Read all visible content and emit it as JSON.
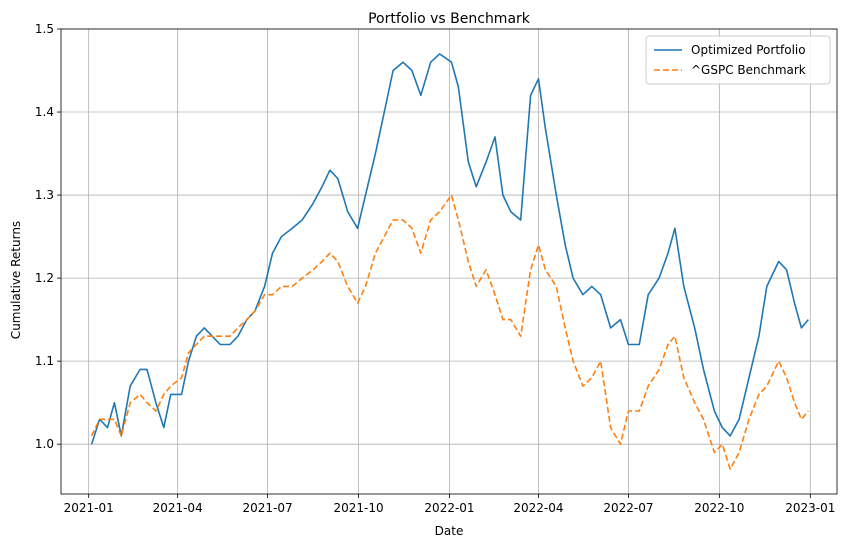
{
  "chart_data": {
    "type": "line",
    "title": "Portfolio vs Benchmark",
    "xlabel": "Date",
    "ylabel": "Cumulative Returns",
    "x_ticks": [
      "2021-01",
      "2021-04",
      "2021-07",
      "2021-10",
      "2022-01",
      "2022-04",
      "2022-07",
      "2022-10",
      "2023-01"
    ],
    "y_ticks": [
      "1.0",
      "1.1",
      "1.2",
      "1.3",
      "1.4",
      "1.5"
    ],
    "xlim": [
      "2020-12-04",
      "2023-01-28"
    ],
    "ylim": [
      0.94,
      1.5
    ],
    "grid": true,
    "legend_position": "top-right",
    "series": [
      {
        "name": "Optimized Portfolio",
        "color": "#1f77b4",
        "style": "solid",
        "points": [
          [
            "2021-01-04",
            1.0
          ],
          [
            "2021-01-12",
            1.03
          ],
          [
            "2021-01-20",
            1.02
          ],
          [
            "2021-01-27",
            1.05
          ],
          [
            "2021-02-03",
            1.01
          ],
          [
            "2021-02-12",
            1.07
          ],
          [
            "2021-02-22",
            1.09
          ],
          [
            "2021-03-01",
            1.09
          ],
          [
            "2021-03-10",
            1.05
          ],
          [
            "2021-03-18",
            1.02
          ],
          [
            "2021-03-25",
            1.06
          ],
          [
            "2021-04-05",
            1.06
          ],
          [
            "2021-04-12",
            1.1
          ],
          [
            "2021-04-20",
            1.13
          ],
          [
            "2021-04-28",
            1.14
          ],
          [
            "2021-05-06",
            1.13
          ],
          [
            "2021-05-14",
            1.12
          ],
          [
            "2021-05-24",
            1.12
          ],
          [
            "2021-06-01",
            1.13
          ],
          [
            "2021-06-10",
            1.15
          ],
          [
            "2021-06-18",
            1.16
          ],
          [
            "2021-06-28",
            1.19
          ],
          [
            "2021-07-06",
            1.23
          ],
          [
            "2021-07-15",
            1.25
          ],
          [
            "2021-07-26",
            1.26
          ],
          [
            "2021-08-05",
            1.27
          ],
          [
            "2021-08-16",
            1.29
          ],
          [
            "2021-08-25",
            1.31
          ],
          [
            "2021-09-02",
            1.33
          ],
          [
            "2021-09-10",
            1.32
          ],
          [
            "2021-09-20",
            1.28
          ],
          [
            "2021-09-30",
            1.26
          ],
          [
            "2021-10-08",
            1.3
          ],
          [
            "2021-10-18",
            1.35
          ],
          [
            "2021-10-27",
            1.4
          ],
          [
            "2021-11-05",
            1.45
          ],
          [
            "2021-11-15",
            1.46
          ],
          [
            "2021-11-24",
            1.45
          ],
          [
            "2021-12-03",
            1.42
          ],
          [
            "2021-12-13",
            1.46
          ],
          [
            "2021-12-22",
            1.47
          ],
          [
            "2022-01-03",
            1.46
          ],
          [
            "2022-01-10",
            1.43
          ],
          [
            "2022-01-20",
            1.34
          ],
          [
            "2022-01-28",
            1.31
          ],
          [
            "2022-02-07",
            1.34
          ],
          [
            "2022-02-16",
            1.37
          ],
          [
            "2022-02-24",
            1.3
          ],
          [
            "2022-03-04",
            1.28
          ],
          [
            "2022-03-14",
            1.27
          ],
          [
            "2022-03-24",
            1.42
          ],
          [
            "2022-04-01",
            1.44
          ],
          [
            "2022-04-08",
            1.38
          ],
          [
            "2022-04-19",
            1.3
          ],
          [
            "2022-04-28",
            1.24
          ],
          [
            "2022-05-06",
            1.2
          ],
          [
            "2022-05-16",
            1.18
          ],
          [
            "2022-05-25",
            1.19
          ],
          [
            "2022-06-03",
            1.18
          ],
          [
            "2022-06-13",
            1.14
          ],
          [
            "2022-06-23",
            1.15
          ],
          [
            "2022-07-01",
            1.12
          ],
          [
            "2022-07-12",
            1.12
          ],
          [
            "2022-07-21",
            1.18
          ],
          [
            "2022-08-01",
            1.2
          ],
          [
            "2022-08-10",
            1.23
          ],
          [
            "2022-08-17",
            1.26
          ],
          [
            "2022-08-26",
            1.19
          ],
          [
            "2022-09-06",
            1.14
          ],
          [
            "2022-09-15",
            1.09
          ],
          [
            "2022-09-26",
            1.04
          ],
          [
            "2022-10-04",
            1.02
          ],
          [
            "2022-10-12",
            1.01
          ],
          [
            "2022-10-21",
            1.03
          ],
          [
            "2022-10-31",
            1.08
          ],
          [
            "2022-11-10",
            1.13
          ],
          [
            "2022-11-18",
            1.19
          ],
          [
            "2022-11-30",
            1.22
          ],
          [
            "2022-12-08",
            1.21
          ],
          [
            "2022-12-16",
            1.17
          ],
          [
            "2022-12-23",
            1.14
          ],
          [
            "2022-12-30",
            1.15
          ]
        ]
      },
      {
        "name": "^GSPC Benchmark",
        "color": "#ff7f0e",
        "style": "dashed",
        "points": [
          [
            "2021-01-04",
            1.01
          ],
          [
            "2021-01-12",
            1.03
          ],
          [
            "2021-01-20",
            1.03
          ],
          [
            "2021-01-27",
            1.03
          ],
          [
            "2021-02-03",
            1.01
          ],
          [
            "2021-02-12",
            1.05
          ],
          [
            "2021-02-22",
            1.06
          ],
          [
            "2021-03-01",
            1.05
          ],
          [
            "2021-03-10",
            1.04
          ],
          [
            "2021-03-18",
            1.06
          ],
          [
            "2021-03-25",
            1.07
          ],
          [
            "2021-04-05",
            1.08
          ],
          [
            "2021-04-12",
            1.11
          ],
          [
            "2021-04-20",
            1.12
          ],
          [
            "2021-04-28",
            1.13
          ],
          [
            "2021-05-06",
            1.13
          ],
          [
            "2021-05-14",
            1.13
          ],
          [
            "2021-05-24",
            1.13
          ],
          [
            "2021-06-01",
            1.14
          ],
          [
            "2021-06-10",
            1.15
          ],
          [
            "2021-06-18",
            1.16
          ],
          [
            "2021-06-28",
            1.18
          ],
          [
            "2021-07-06",
            1.18
          ],
          [
            "2021-07-15",
            1.19
          ],
          [
            "2021-07-26",
            1.19
          ],
          [
            "2021-08-05",
            1.2
          ],
          [
            "2021-08-16",
            1.21
          ],
          [
            "2021-08-25",
            1.22
          ],
          [
            "2021-09-02",
            1.23
          ],
          [
            "2021-09-10",
            1.22
          ],
          [
            "2021-09-20",
            1.19
          ],
          [
            "2021-09-30",
            1.17
          ],
          [
            "2021-10-08",
            1.19
          ],
          [
            "2021-10-18",
            1.23
          ],
          [
            "2021-10-27",
            1.25
          ],
          [
            "2021-11-05",
            1.27
          ],
          [
            "2021-11-15",
            1.27
          ],
          [
            "2021-11-24",
            1.26
          ],
          [
            "2021-12-03",
            1.23
          ],
          [
            "2021-12-13",
            1.27
          ],
          [
            "2021-12-22",
            1.28
          ],
          [
            "2022-01-03",
            1.3
          ],
          [
            "2022-01-10",
            1.27
          ],
          [
            "2022-01-20",
            1.22
          ],
          [
            "2022-01-28",
            1.19
          ],
          [
            "2022-02-07",
            1.21
          ],
          [
            "2022-02-16",
            1.18
          ],
          [
            "2022-02-24",
            1.15
          ],
          [
            "2022-03-04",
            1.15
          ],
          [
            "2022-03-14",
            1.13
          ],
          [
            "2022-03-24",
            1.21
          ],
          [
            "2022-04-01",
            1.24
          ],
          [
            "2022-04-08",
            1.21
          ],
          [
            "2022-04-19",
            1.19
          ],
          [
            "2022-04-28",
            1.14
          ],
          [
            "2022-05-06",
            1.1
          ],
          [
            "2022-05-16",
            1.07
          ],
          [
            "2022-05-25",
            1.08
          ],
          [
            "2022-06-03",
            1.1
          ],
          [
            "2022-06-13",
            1.02
          ],
          [
            "2022-06-23",
            1.0
          ],
          [
            "2022-07-01",
            1.04
          ],
          [
            "2022-07-12",
            1.04
          ],
          [
            "2022-07-21",
            1.07
          ],
          [
            "2022-08-01",
            1.09
          ],
          [
            "2022-08-10",
            1.12
          ],
          [
            "2022-08-17",
            1.13
          ],
          [
            "2022-08-26",
            1.08
          ],
          [
            "2022-09-06",
            1.05
          ],
          [
            "2022-09-15",
            1.03
          ],
          [
            "2022-09-26",
            0.99
          ],
          [
            "2022-10-04",
            1.0
          ],
          [
            "2022-10-12",
            0.97
          ],
          [
            "2022-10-21",
            0.99
          ],
          [
            "2022-10-31",
            1.03
          ],
          [
            "2022-11-10",
            1.06
          ],
          [
            "2022-11-18",
            1.07
          ],
          [
            "2022-11-30",
            1.1
          ],
          [
            "2022-12-08",
            1.08
          ],
          [
            "2022-12-16",
            1.05
          ],
          [
            "2022-12-23",
            1.03
          ],
          [
            "2022-12-30",
            1.04
          ]
        ]
      }
    ]
  }
}
